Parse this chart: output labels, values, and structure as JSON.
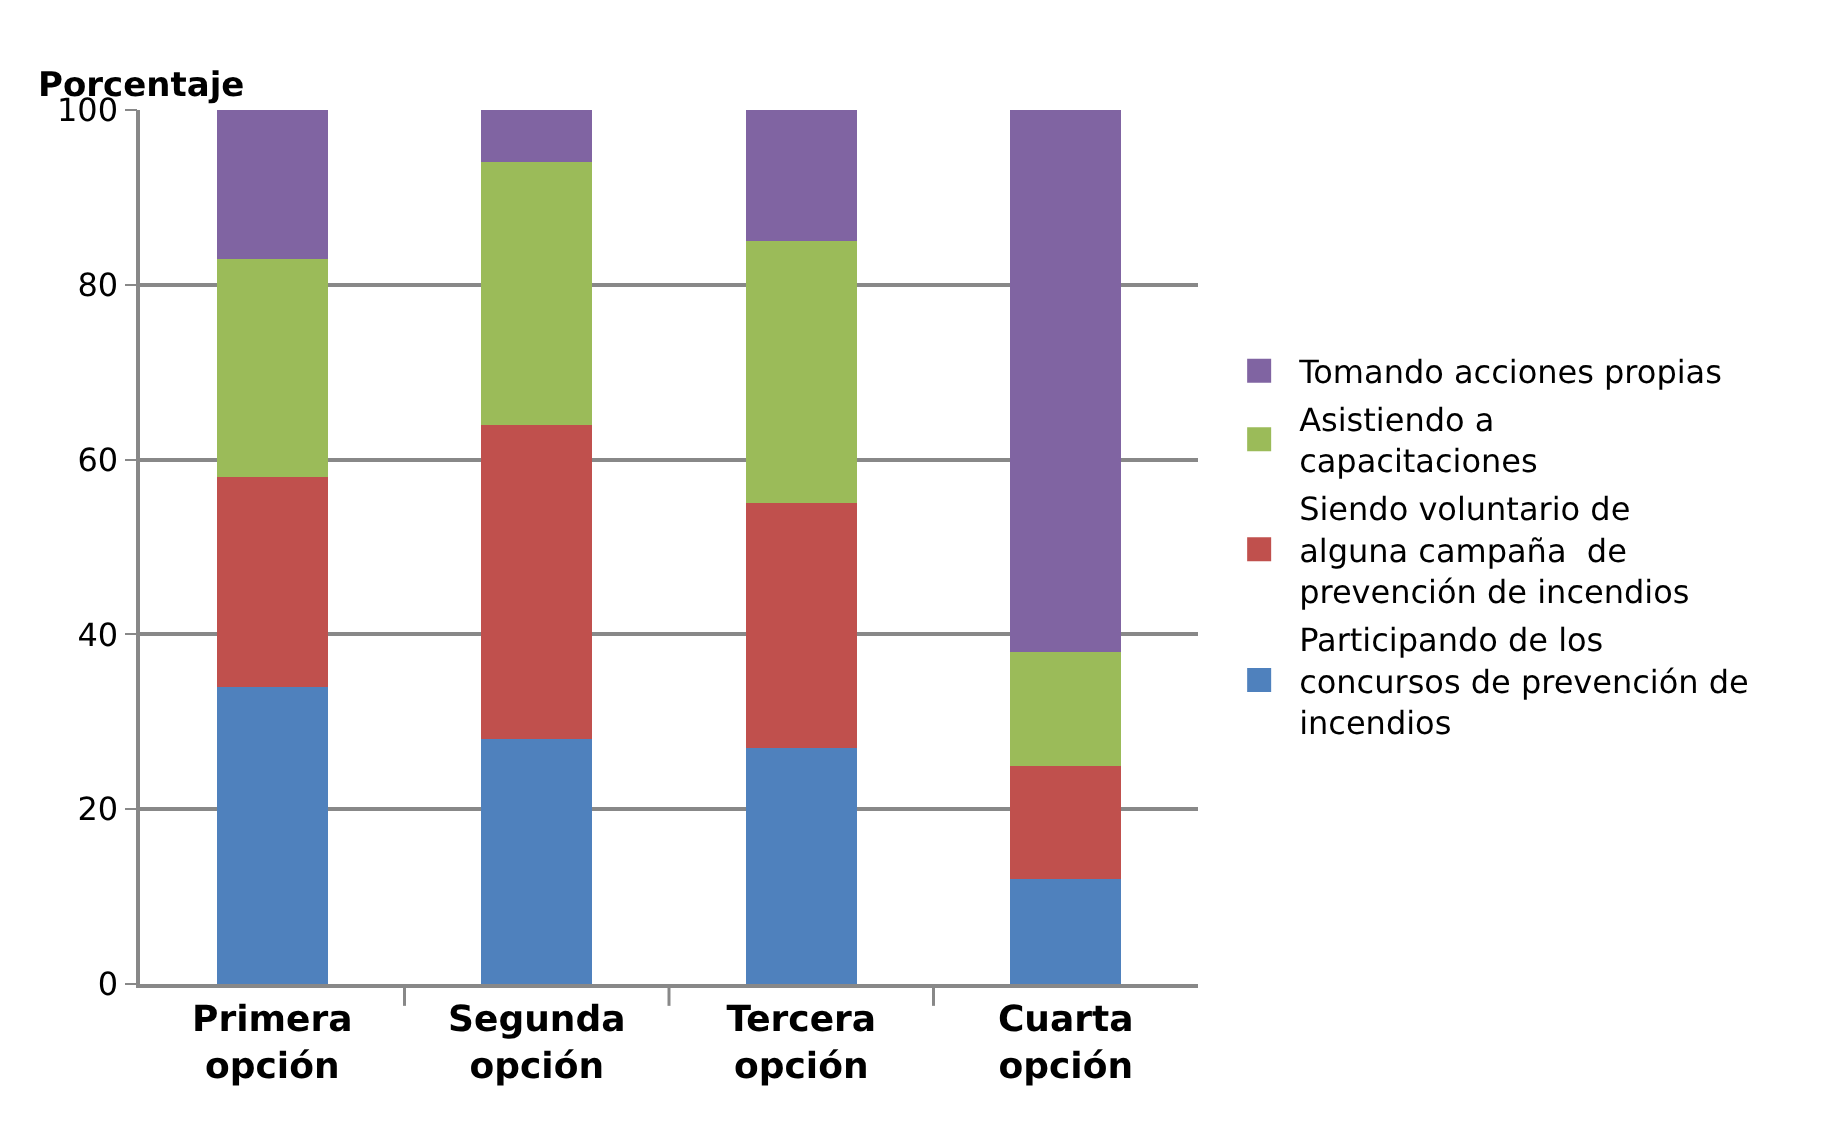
{
  "chart_data": {
    "type": "bar",
    "stacked": true,
    "ylabel": "Porcentaje",
    "categories": [
      "Primera opción",
      "Segunda opción",
      "Tercera opción",
      "Cuarta opción"
    ],
    "series": [
      {
        "name": "Participando de los concursos de prevención de incendios",
        "color": "#4f81bd",
        "values": [
          34,
          28,
          27,
          12
        ]
      },
      {
        "name": "Siendo voluntario de alguna campaña  de prevención de incendios",
        "color": "#c0504d",
        "values": [
          24,
          36,
          28,
          13
        ]
      },
      {
        "name": "Asistiendo a capacitaciones",
        "color": "#9bbb59",
        "values": [
          25,
          30,
          30,
          13
        ]
      },
      {
        "name": "Tomando acciones propias",
        "color": "#8064a2",
        "values": [
          17,
          6,
          15,
          62
        ]
      }
    ],
    "ylim": [
      0,
      100
    ],
    "yticks": [
      0,
      20,
      40,
      60,
      80,
      100
    ],
    "grid": "y",
    "legend": "right"
  }
}
